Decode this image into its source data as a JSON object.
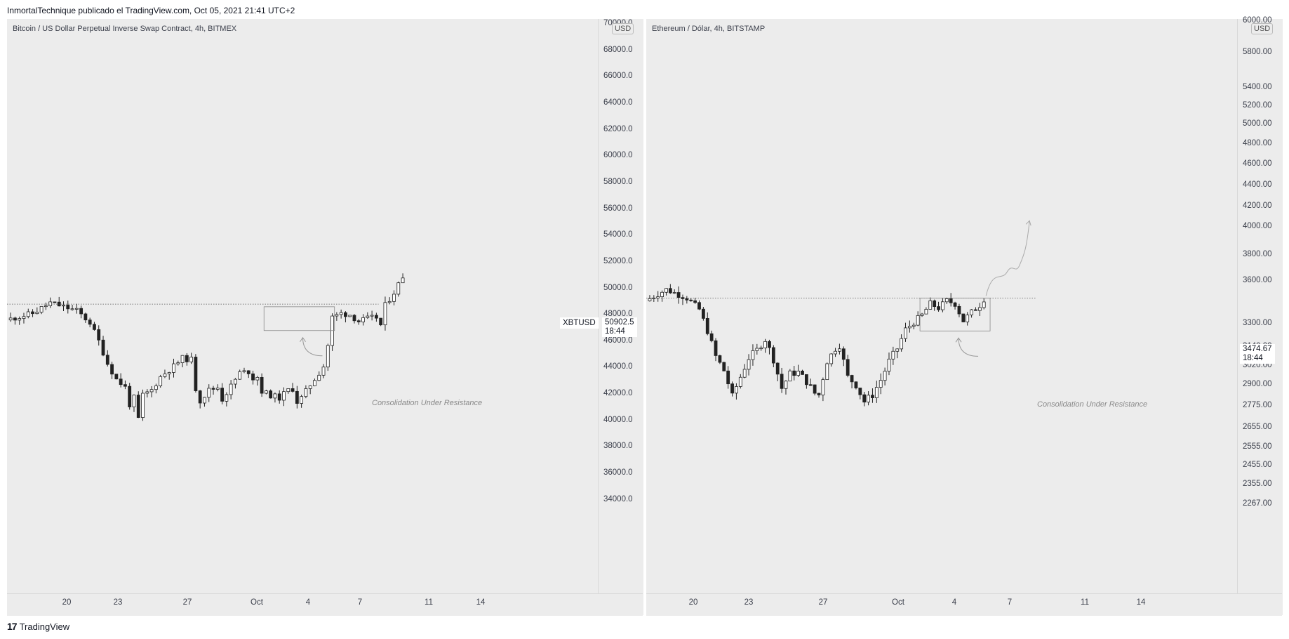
{
  "header": {
    "publisher": "InmortalTechnique publicado el TradingView.com, Oct 05, 2021 21:41 UTC+2"
  },
  "footer": {
    "brand": "TradingView",
    "logo_glyph": "17"
  },
  "annotation_text": "Consolidation Under Resistance",
  "chart_data": [
    {
      "type": "candlestick",
      "title": "Bitcoin / US Dollar Perpetual Inverse Swap Contract, 4h, BITMEX",
      "currency": "USD",
      "symbol": "XBTUSD",
      "last_price": "50902.5",
      "countdown": "18:44",
      "y_ticks": [
        "70000.0",
        "68000.0",
        "66000.0",
        "64000.0",
        "62000.0",
        "60000.0",
        "58000.0",
        "56000.0",
        "54000.0",
        "52000.0",
        "50000.0",
        "48000.0",
        "46000.0",
        "44000.0",
        "42000.0",
        "40000.0",
        "38000.0",
        "36000.0",
        "34000.0"
      ],
      "x_ticks": [
        "20",
        "23",
        "27",
        "Oct",
        "4",
        "7",
        "11",
        "14"
      ],
      "ylim": [
        33000,
        70500
      ],
      "resistance_level": 48800,
      "consolidation_box": [
        48600,
        46800
      ],
      "path": [
        [
          0,
          47600
        ],
        [
          6,
          48100
        ],
        [
          10,
          48900
        ],
        [
          13,
          48600
        ],
        [
          16,
          48300
        ],
        [
          19,
          47400
        ],
        [
          21,
          46000
        ],
        [
          23,
          44300
        ],
        [
          25,
          43100
        ],
        [
          27,
          42500
        ],
        [
          28,
          41200
        ],
        [
          29,
          41700
        ],
        [
          30,
          40100
        ],
        [
          31,
          41900
        ],
        [
          33,
          42300
        ],
        [
          35,
          43300
        ],
        [
          38,
          44100
        ],
        [
          40,
          44700
        ],
        [
          42,
          44600
        ],
        [
          43,
          42400
        ],
        [
          44,
          41500
        ],
        [
          46,
          42300
        ],
        [
          48,
          42500
        ],
        [
          49,
          41600
        ],
        [
          51,
          42600
        ],
        [
          53,
          43600
        ],
        [
          55,
          43700
        ],
        [
          56,
          43200
        ],
        [
          57,
          43300
        ],
        [
          58,
          42200
        ],
        [
          60,
          41900
        ],
        [
          62,
          41700
        ],
        [
          64,
          42300
        ],
        [
          65,
          42400
        ],
        [
          66,
          41400
        ],
        [
          67,
          41700
        ],
        [
          69,
          42700
        ],
        [
          71,
          43600
        ],
        [
          72,
          44100
        ],
        [
          73,
          45700
        ],
        [
          74,
          47800
        ],
        [
          76,
          48100
        ],
        [
          78,
          48000
        ],
        [
          80,
          47500
        ],
        [
          82,
          47700
        ],
        [
          84,
          47800
        ],
        [
          85,
          47200
        ],
        [
          86,
          48700
        ],
        [
          88,
          49700
        ],
        [
          89,
          50300
        ],
        [
          90,
          50902
        ]
      ]
    },
    {
      "type": "candlestick",
      "title": "Ethereum / Dólar, 4h, BITSTAMP",
      "currency": "USD",
      "last_price": "3474.67",
      "countdown": "18:44",
      "y_ticks": [
        "6000.00",
        "5800.00",
        "5400.00",
        "5200.00",
        "5000.00",
        "4800.00",
        "4600.00",
        "4400.00",
        "4200.00",
        "4000.00",
        "3800.00",
        "3600.00",
        "3300.00",
        "3140.00",
        "3020.00",
        "2900.00",
        "2775.00",
        "2655.00",
        "2555.00",
        "2455.00",
        "2355.00",
        "2267.00"
      ],
      "x_ticks": [
        "20",
        "23",
        "27",
        "Oct",
        "4",
        "7",
        "11",
        "14"
      ],
      "ylim": [
        2250,
        6020
      ],
      "resistance_level": 3480,
      "consolidation_box": [
        3480,
        3250
      ],
      "projection_target": 4060,
      "path": [
        [
          0,
          3460
        ],
        [
          5,
          3540
        ],
        [
          10,
          3480
        ],
        [
          13,
          3400
        ],
        [
          15,
          3250
        ],
        [
          17,
          3080
        ],
        [
          19,
          2990
        ],
        [
          21,
          2830
        ],
        [
          23,
          2950
        ],
        [
          25,
          3070
        ],
        [
          27,
          3120
        ],
        [
          29,
          3190
        ],
        [
          31,
          3060
        ],
        [
          33,
          2880
        ],
        [
          35,
          2970
        ],
        [
          37,
          2980
        ],
        [
          39,
          2920
        ],
        [
          41,
          2850
        ],
        [
          42,
          2840
        ],
        [
          44,
          3050
        ],
        [
          46,
          3130
        ],
        [
          47,
          3150
        ],
        [
          49,
          2950
        ],
        [
          51,
          2900
        ],
        [
          53,
          2800
        ],
        [
          55,
          2840
        ],
        [
          57,
          2930
        ],
        [
          59,
          3050
        ],
        [
          61,
          3130
        ],
        [
          63,
          3260
        ],
        [
          65,
          3310
        ],
        [
          67,
          3360
        ],
        [
          69,
          3440
        ],
        [
          71,
          3410
        ],
        [
          73,
          3460
        ],
        [
          75,
          3440
        ],
        [
          77,
          3320
        ],
        [
          79,
          3380
        ],
        [
          81,
          3430
        ],
        [
          82,
          3474
        ]
      ]
    }
  ]
}
